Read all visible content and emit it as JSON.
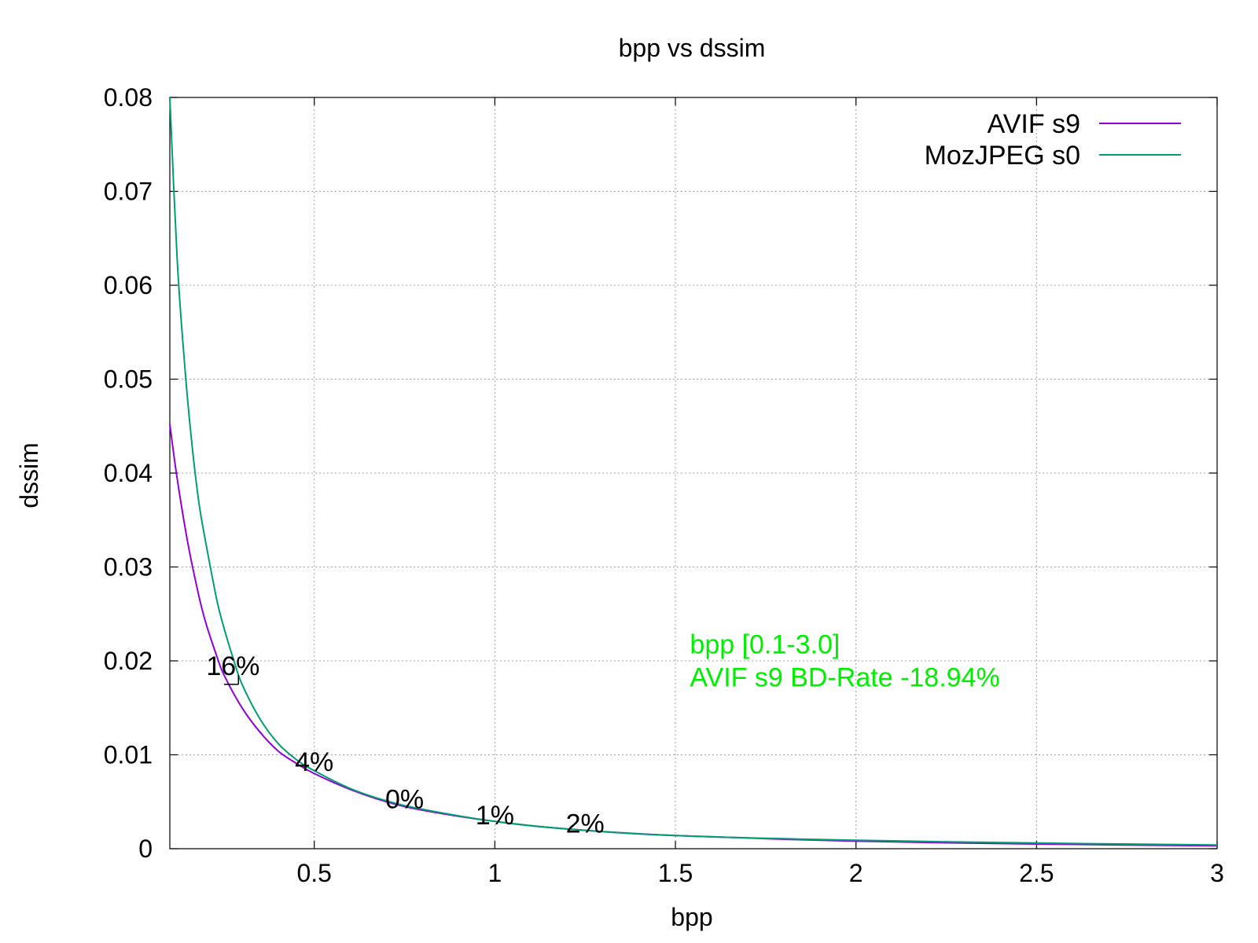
{
  "chart_data": {
    "type": "line",
    "title": "bpp vs dssim",
    "xlabel": "bpp",
    "ylabel": "dssim",
    "xlim": [
      0.1,
      3.0
    ],
    "ylim": [
      0,
      0.08
    ],
    "grid": true,
    "legend_position": "top-right",
    "x_ticks": [
      0.5,
      1,
      1.5,
      2,
      2.5,
      3
    ],
    "x_tick_labels": [
      "0.5",
      "1",
      "1.5",
      "2",
      "2.5",
      "3"
    ],
    "y_ticks": [
      0,
      0.01,
      0.02,
      0.03,
      0.04,
      0.05,
      0.06,
      0.07,
      0.08
    ],
    "y_tick_labels": [
      "0",
      "0.01",
      "0.02",
      "0.03",
      "0.04",
      "0.05",
      "0.06",
      "0.07",
      "0.08"
    ],
    "series": [
      {
        "name": "AVIF s9",
        "color": "#9400d3",
        "x": [
          0.1,
          0.12,
          0.15,
          0.18,
          0.2,
          0.23,
          0.25,
          0.3,
          0.35,
          0.4,
          0.45,
          0.5,
          0.6,
          0.7,
          0.8,
          1.0,
          1.2,
          1.5,
          2.0,
          2.5,
          3.0
        ],
        "y": [
          0.0452,
          0.0395,
          0.0325,
          0.027,
          0.024,
          0.0205,
          0.0185,
          0.015,
          0.0124,
          0.0104,
          0.0091,
          0.008,
          0.0063,
          0.005,
          0.0041,
          0.0029,
          0.0021,
          0.0014,
          0.0008,
          0.0005,
          0.0003
        ]
      },
      {
        "name": "MozJPEG s0",
        "color": "#009e73",
        "x": [
          0.1,
          0.12,
          0.14,
          0.16,
          0.18,
          0.2,
          0.23,
          0.25,
          0.28,
          0.3,
          0.35,
          0.4,
          0.45,
          0.5,
          0.6,
          0.7,
          0.8,
          1.0,
          1.2,
          1.5,
          2.0,
          2.5,
          3.0
        ],
        "y": [
          0.08,
          0.063,
          0.052,
          0.0435,
          0.037,
          0.0325,
          0.0265,
          0.0235,
          0.0197,
          0.0175,
          0.0138,
          0.0112,
          0.0095,
          0.0083,
          0.0064,
          0.0051,
          0.0042,
          0.0029,
          0.0021,
          0.0014,
          0.0009,
          0.0006,
          0.0004
        ]
      }
    ],
    "annotations": [
      {
        "text": "16%",
        "x": 0.275,
        "y": 0.0195,
        "bracket_x": [
          0.25,
          0.29
        ],
        "bracket_y": 0.0175
      },
      {
        "text": "4%",
        "x": 0.5,
        "y": 0.0093
      },
      {
        "text": "0%",
        "x": 0.75,
        "y": 0.0053
      },
      {
        "text": "1%",
        "x": 1.0,
        "y": 0.0036
      },
      {
        "text": "2%",
        "x": 1.25,
        "y": 0.0027
      }
    ],
    "note": {
      "lines": [
        "bpp [0.1-3.0]",
        "AVIF s9 BD-Rate -18.94%"
      ],
      "color": "#00ee00",
      "x": 1.54,
      "y": 0.0208
    }
  }
}
